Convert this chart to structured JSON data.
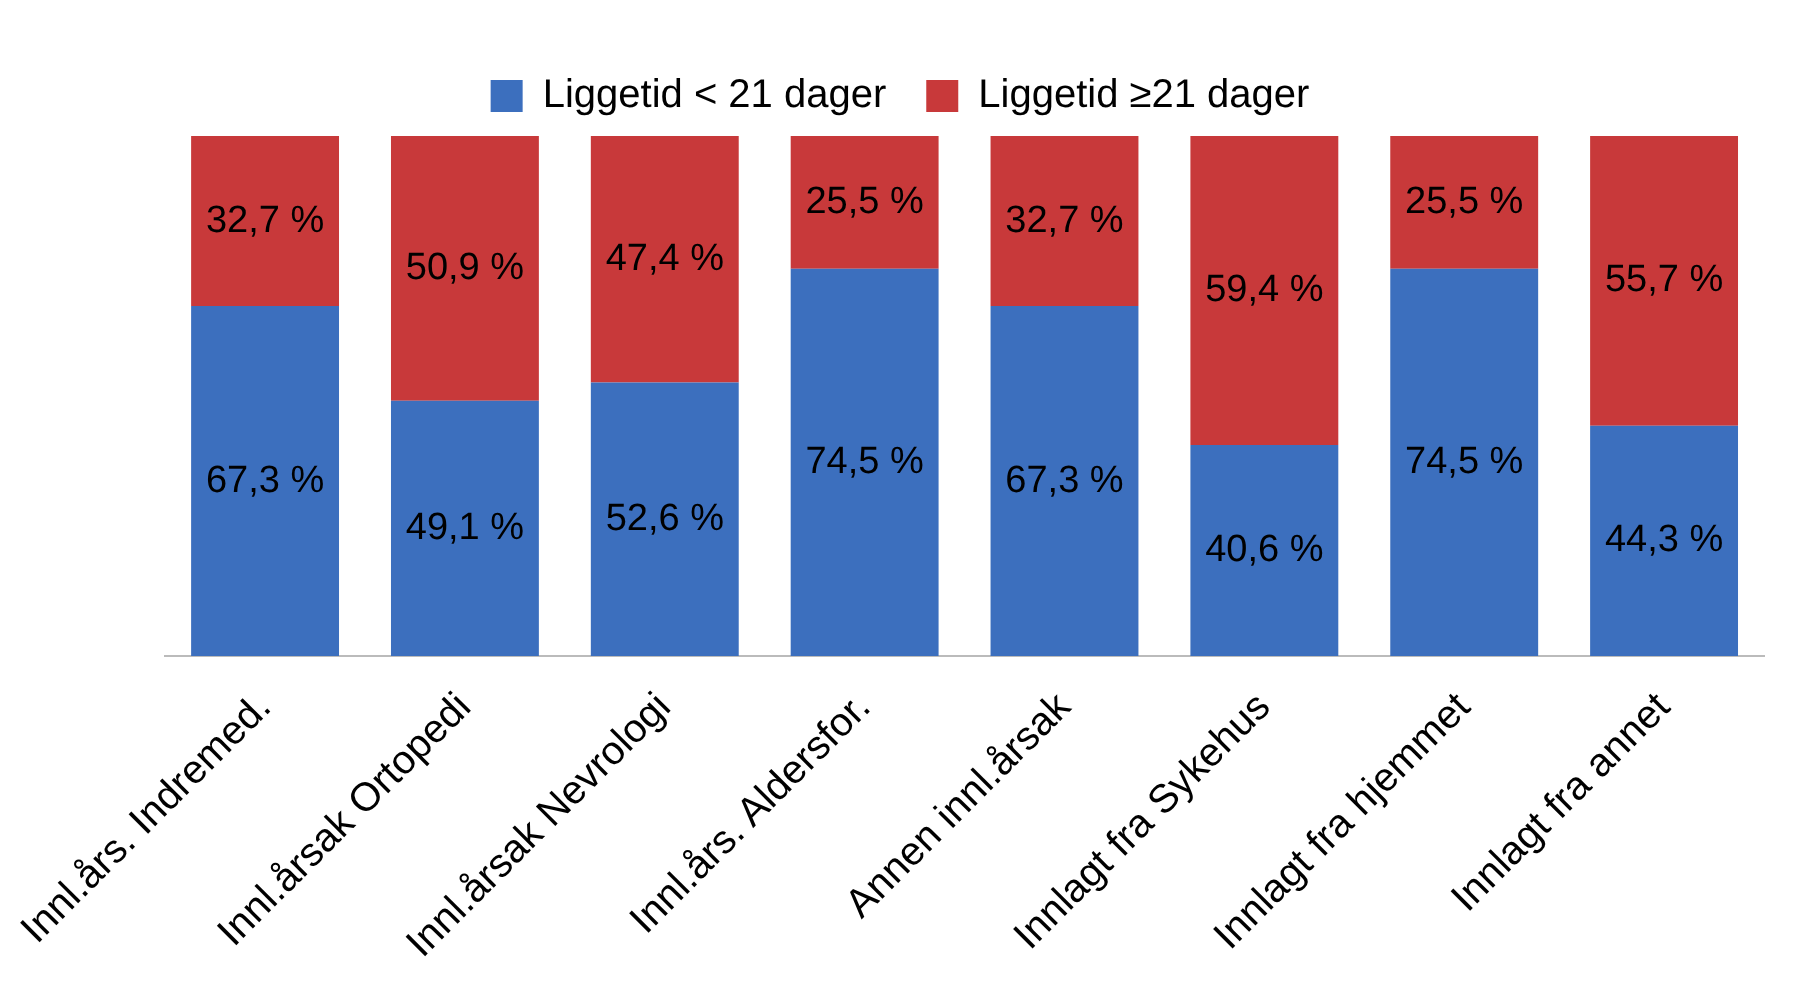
{
  "chart_data": {
    "type": "bar",
    "stacked": true,
    "legend": "top",
    "categories": [
      "Innl.års. Indremed.",
      "Innl.årsak Ortopedi",
      "Innl.årsak Nevrologi",
      "Innl.års. Aldersfor.",
      "Annen innl.årsak",
      "Innlagt fra Sykehus",
      "Innlagt fra hjemmet",
      "Innlagt fra annet"
    ],
    "series": [
      {
        "name": "Liggetid < 21 dager",
        "color": "#3c6fbe",
        "values": [
          67.3,
          49.1,
          52.6,
          74.5,
          67.3,
          40.6,
          74.5,
          44.3
        ],
        "value_labels": [
          "67,3 %",
          "49,1 %",
          "52,6 %",
          "74,5 %",
          "67,3 %",
          "40,6 %",
          "74,5 %",
          "44,3 %"
        ]
      },
      {
        "name": "Liggetid ≥21 dager",
        "color": "#c8393a",
        "values": [
          32.7,
          50.9,
          47.4,
          25.5,
          32.7,
          59.4,
          25.5,
          55.7
        ],
        "value_labels": [
          "32,7 %",
          "50,9 %",
          "47,4 %",
          "25,5 %",
          "32,7 %",
          "59,4 %",
          "25,5 %",
          "55,7 %"
        ]
      }
    ]
  }
}
